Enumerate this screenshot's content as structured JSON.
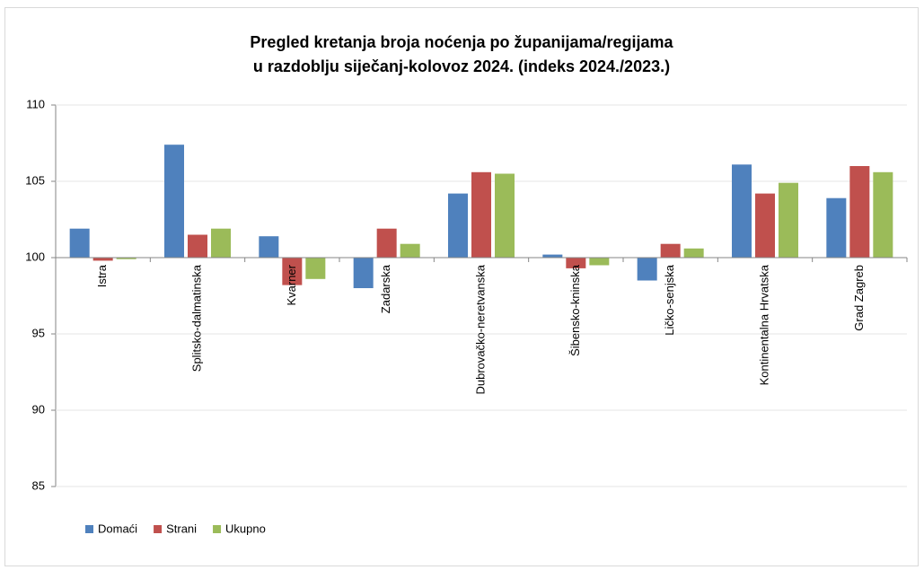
{
  "chart_data": {
    "type": "bar",
    "title": [
      "Pregled kretanja broja noćenja po županijama/regijama",
      "u razdoblju siječanj-kolovoz 2024. (indeks 2024./2023.)"
    ],
    "categories": [
      "Istra",
      "Splitsko-dalmatinska",
      "Kvarner",
      "Zadarska",
      "Dubrovačko-neretvanska",
      "Šibensko-kninska",
      "Ličko-senjska",
      "Kontinentalna Hrvatska",
      "Grad Zagreb"
    ],
    "series": [
      {
        "name": "Domaći",
        "color": "#4f81bd",
        "values": [
          101.9,
          107.4,
          101.4,
          98.0,
          104.2,
          100.2,
          98.5,
          106.1,
          103.9
        ]
      },
      {
        "name": "Strani",
        "color": "#c0504d",
        "values": [
          99.8,
          101.5,
          98.2,
          101.9,
          105.6,
          99.3,
          100.9,
          104.2,
          106.0
        ]
      },
      {
        "name": "Ukupno",
        "color": "#9bbb59",
        "values": [
          99.9,
          101.9,
          98.6,
          100.9,
          105.5,
          99.5,
          100.6,
          104.9,
          105.6
        ]
      }
    ],
    "ylim": [
      85,
      110
    ],
    "yticks": [
      85,
      90,
      95,
      100,
      105,
      110
    ],
    "x_axis_crosses": 100,
    "grid": true,
    "legend": "bottom-left"
  }
}
